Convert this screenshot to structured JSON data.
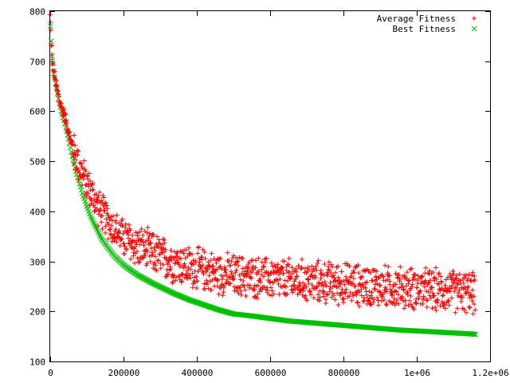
{
  "chart_data": {
    "type": "scatter",
    "title": "",
    "xlabel": "",
    "ylabel": "",
    "xlim": [
      0,
      1200000
    ],
    "ylim": [
      100,
      800
    ],
    "grid": false,
    "legend_position": "top-right",
    "x_tick_labels": [
      {
        "value": 0,
        "label": "0"
      },
      {
        "value": 200000,
        "label": "200000"
      },
      {
        "value": 400000,
        "label": "400000"
      },
      {
        "value": 600000,
        "label": "600000"
      },
      {
        "value": 800000,
        "label": "800000"
      },
      {
        "value": 1000000,
        "label": "1e+06"
      },
      {
        "value": 1200000,
        "label": "1.2e+06"
      }
    ],
    "y_tick_labels": [
      {
        "value": 100,
        "label": "100"
      },
      {
        "value": 200,
        "label": "200"
      },
      {
        "value": 300,
        "label": "300"
      },
      {
        "value": 400,
        "label": "400"
      },
      {
        "value": 500,
        "label": "500"
      },
      {
        "value": 600,
        "label": "600"
      },
      {
        "value": 700,
        "label": "700"
      },
      {
        "value": 800,
        "label": "800"
      }
    ],
    "series": [
      {
        "name": "Average Fitness",
        "marker": "+",
        "color": "#ff0000",
        "x": [
          0,
          5000,
          10000,
          15000,
          20000,
          25000,
          30000,
          40000,
          50000,
          60000,
          70000,
          80000,
          90000,
          100000,
          110000,
          120000,
          130000,
          140000,
          150000,
          160000,
          170000,
          180000,
          190000,
          200000,
          210000,
          220000,
          230000,
          240000,
          250000,
          260000,
          270000,
          280000,
          290000,
          300000,
          310000,
          320000,
          330000,
          340000,
          350000,
          360000,
          370000,
          380000,
          390000,
          400000,
          410000,
          420000,
          430000,
          440000,
          450000,
          460000,
          470000,
          480000,
          490000,
          500000,
          510000,
          520000,
          530000,
          540000,
          550000,
          560000,
          570000,
          580000,
          590000,
          600000,
          610000,
          620000,
          630000,
          640000,
          650000,
          660000,
          670000,
          680000,
          690000,
          700000,
          710000,
          720000,
          730000,
          740000,
          750000,
          760000,
          770000,
          780000,
          790000,
          800000,
          810000,
          820000,
          830000,
          840000,
          850000,
          860000,
          870000,
          880000,
          890000,
          900000,
          910000,
          920000,
          930000,
          940000,
          950000,
          960000,
          970000,
          980000,
          990000,
          1000000,
          1010000,
          1020000,
          1030000,
          1040000,
          1050000,
          1060000,
          1070000,
          1080000,
          1090000,
          1100000,
          1110000,
          1120000,
          1130000,
          1140000,
          1150000,
          1160000
        ],
        "y": [
          790,
          700,
          675,
          655,
          640,
          620,
          610,
          590,
          560,
          530,
          510,
          490,
          470,
          455,
          440,
          425,
          410,
          400,
          390,
          380,
          370,
          362,
          355,
          348,
          342,
          337,
          333,
          330,
          327,
          324,
          320,
          316,
          313,
          310,
          306,
          303,
          300,
          298,
          296,
          294,
          291,
          289,
          287,
          285,
          284,
          283,
          281,
          279,
          277,
          276,
          275,
          274,
          273,
          272,
          271,
          270,
          270,
          269,
          268,
          268,
          267,
          266,
          266,
          265,
          265,
          264,
          264,
          263,
          263,
          262,
          262,
          261,
          261,
          260,
          260,
          259,
          259,
          258,
          258,
          257,
          257,
          256,
          256,
          255,
          255,
          254,
          254,
          253,
          253,
          252,
          252,
          251,
          251,
          250,
          250,
          249,
          249,
          248,
          248,
          247,
          247,
          246,
          246,
          245,
          245,
          244,
          244,
          243,
          243,
          242,
          242,
          241,
          241,
          240,
          240,
          239,
          239,
          238,
          238,
          237
        ],
        "spread": 40
      },
      {
        "name": "Best Fitness",
        "marker": "x",
        "color": "#00c000",
        "x": [
          0,
          5000,
          10000,
          15000,
          20000,
          25000,
          30000,
          40000,
          50000,
          60000,
          70000,
          80000,
          90000,
          100000,
          110000,
          120000,
          130000,
          140000,
          150000,
          160000,
          170000,
          180000,
          190000,
          200000,
          220000,
          240000,
          260000,
          280000,
          300000,
          320000,
          340000,
          360000,
          380000,
          400000,
          420000,
          440000,
          460000,
          480000,
          500000,
          550000,
          600000,
          650000,
          700000,
          750000,
          800000,
          850000,
          900000,
          950000,
          1000000,
          1050000,
          1100000,
          1150000,
          1160000
        ],
        "y": [
          770,
          710,
          680,
          655,
          635,
          615,
          600,
          575,
          545,
          510,
          480,
          455,
          430,
          410,
          390,
          375,
          360,
          345,
          335,
          325,
          315,
          307,
          300,
          293,
          282,
          272,
          264,
          256,
          249,
          242,
          235,
          229,
          223,
          218,
          213,
          208,
          203,
          199,
          195,
          191,
          186,
          181,
          178,
          175,
          172,
          169,
          166,
          163,
          161,
          159,
          157,
          155,
          154
        ]
      }
    ]
  }
}
